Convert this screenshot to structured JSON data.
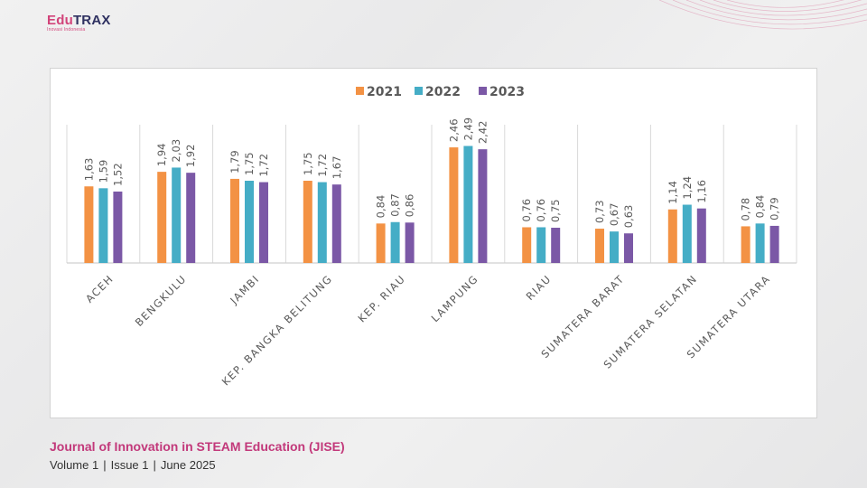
{
  "logo": {
    "brand_a": "Edu",
    "brand_b": "TRAX",
    "tagline": "Inovasi Indonesia"
  },
  "footer": {
    "journal": "Journal of Innovation in STEAM Education (JISE)",
    "volume": "Volume 1",
    "issue": "Issue 1",
    "date": "June 2025",
    "separator": "|"
  },
  "colors": {
    "s2021": "#f39244",
    "s2022": "#45adc6",
    "s2023": "#7b58a6",
    "accent": "#c2387a"
  },
  "chart_data": {
    "type": "bar",
    "title": "",
    "xlabel": "",
    "ylabel": "",
    "ylim": [
      0,
      2.8
    ],
    "legend_position": "top-center",
    "grid": false,
    "categories": [
      "ACEH",
      "BENGKULU",
      "JAMBI",
      "KEP. BANGKA BELITUNG",
      "KEP. RIAU",
      "LAMPUNG",
      "RIAU",
      "SUMATERA BARAT",
      "SUMATERA SELATAN",
      "SUMATERA UTARA"
    ],
    "series": [
      {
        "name": "2021",
        "color": "#f39244",
        "values": [
          1.63,
          1.94,
          1.79,
          1.75,
          0.84,
          2.46,
          0.76,
          0.73,
          1.14,
          0.78
        ],
        "labels": [
          "1,63",
          "1,94",
          "1,79",
          "1,75",
          "0,84",
          "2,46",
          "0,76",
          "0,73",
          "1,14",
          "0,78"
        ]
      },
      {
        "name": "2022",
        "color": "#45adc6",
        "values": [
          1.59,
          2.03,
          1.75,
          1.72,
          0.87,
          2.49,
          0.76,
          0.67,
          1.24,
          0.84
        ],
        "labels": [
          "1,59",
          "2,03",
          "1,75",
          "1,72",
          "0,87",
          "2,49",
          "0,76",
          "0,67",
          "1,24",
          "0,84"
        ]
      },
      {
        "name": "2023",
        "color": "#7b58a6",
        "values": [
          1.52,
          1.92,
          1.72,
          1.67,
          0.86,
          2.42,
          0.75,
          0.63,
          1.16,
          0.79
        ],
        "labels": [
          "1,52",
          "1,92",
          "1,72",
          "1,67",
          "0,86",
          "2,42",
          "0,75",
          "0,63",
          "1,16",
          "0,79"
        ]
      }
    ]
  }
}
